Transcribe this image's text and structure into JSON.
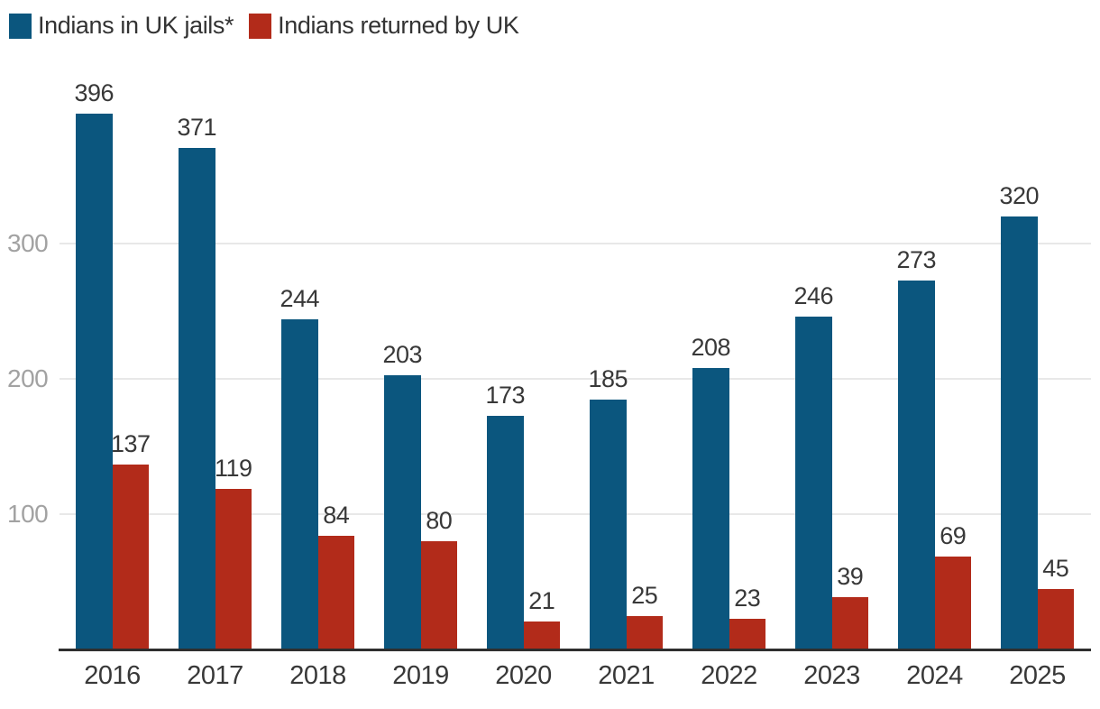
{
  "chart_data": {
    "type": "bar",
    "categories": [
      "2016",
      "2017",
      "2018",
      "2019",
      "2020",
      "2021",
      "2022",
      "2023",
      "2024",
      "2025"
    ],
    "series": [
      {
        "name": "Indians in UK jails*",
        "color": "#0b567e",
        "values": [
          396,
          371,
          244,
          203,
          173,
          185,
          208,
          246,
          273,
          320
        ]
      },
      {
        "name": "Indians returned by UK",
        "color": "#b22b1a",
        "values": [
          137,
          119,
          84,
          80,
          21,
          25,
          23,
          39,
          69,
          45
        ]
      }
    ],
    "title": "",
    "xlabel": "",
    "ylabel": "",
    "ylim": [
      0,
      430
    ],
    "yticks": [
      100,
      200,
      300
    ],
    "grid": true,
    "value_labels": true,
    "legend_position": "top-left"
  },
  "legend": {
    "items": [
      {
        "label": "Indians in UK jails*",
        "color": "#0b567e"
      },
      {
        "label": "Indians returned by UK",
        "color": "#b22b1a"
      }
    ]
  },
  "colors": {
    "background": "#ffffff",
    "grid": "#e8e8e8",
    "axis": "#2e2e2e",
    "tick_label": "#a2a2a2",
    "value_label": "#383838",
    "category_label": "#383838",
    "legend_text": "#333333"
  }
}
